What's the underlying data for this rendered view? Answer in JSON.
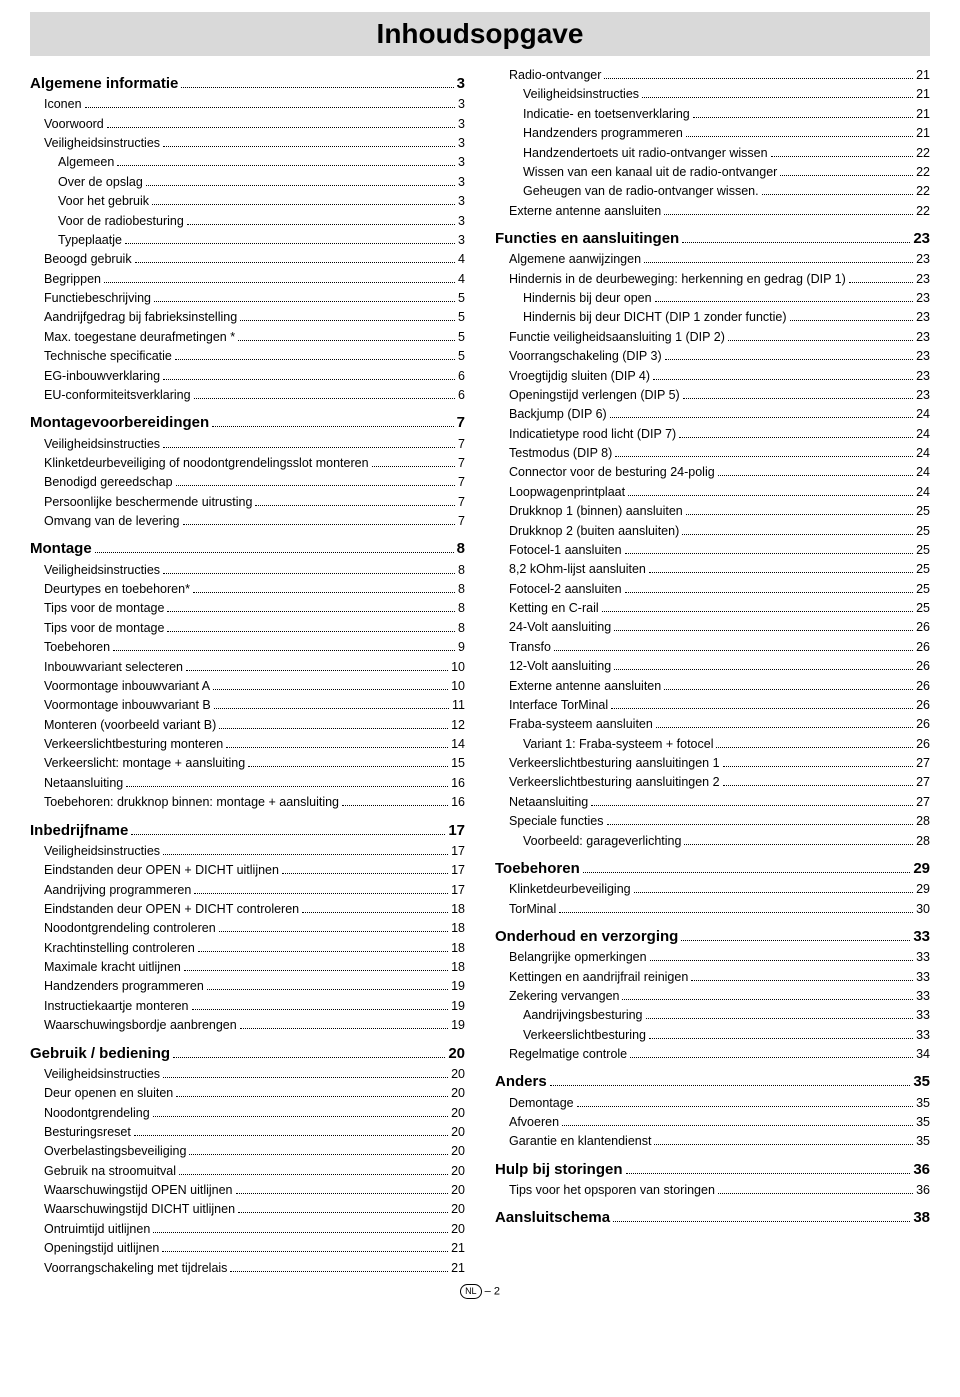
{
  "title": "Inhoudsopgave",
  "footer": {
    "lang": "NL",
    "page": "– 2"
  },
  "colors": {
    "titlebar_bg": "#d9d9d9",
    "text": "#000000",
    "bg": "#ffffff"
  },
  "left": [
    {
      "level": 0,
      "label": "Algemene informatie",
      "page": "3"
    },
    {
      "level": 1,
      "label": "Iconen",
      "page": "3"
    },
    {
      "level": 1,
      "label": "Voorwoord",
      "page": "3"
    },
    {
      "level": 1,
      "label": "Veiligheidsinstructies",
      "page": "3"
    },
    {
      "level": 2,
      "label": "Algemeen",
      "page": "3"
    },
    {
      "level": 2,
      "label": "Over de opslag",
      "page": "3"
    },
    {
      "level": 2,
      "label": "Voor het gebruik",
      "page": "3"
    },
    {
      "level": 2,
      "label": "Voor de radiobesturing",
      "page": "3"
    },
    {
      "level": 2,
      "label": "Typeplaatje",
      "page": "3"
    },
    {
      "level": 1,
      "label": "Beoogd gebruik",
      "page": "4"
    },
    {
      "level": 1,
      "label": "Begrippen",
      "page": "4"
    },
    {
      "level": 1,
      "label": "Functiebeschrijving",
      "page": "5"
    },
    {
      "level": 1,
      "label": "Aandrijfgedrag bij fabrieksinstelling",
      "page": "5"
    },
    {
      "level": 1,
      "label": "Max. toegestane deurafmetingen *",
      "page": "5"
    },
    {
      "level": 1,
      "label": "Technische specificatie",
      "page": "5"
    },
    {
      "level": 1,
      "label": "EG-inbouwverklaring",
      "page": "6"
    },
    {
      "level": 1,
      "label": "EU-conformiteitsverklaring",
      "page": "6"
    },
    {
      "level": 0,
      "label": "Montagevoorbereidingen",
      "page": "7"
    },
    {
      "level": 1,
      "label": "Veiligheidsinstructies",
      "page": "7"
    },
    {
      "level": 1,
      "label": "Klinketdeurbeveiliging of noodontgrendelingsslot monteren",
      "page": "7"
    },
    {
      "level": 1,
      "label": "Benodigd gereedschap",
      "page": "7"
    },
    {
      "level": 1,
      "label": "Persoonlijke beschermende uitrusting",
      "page": "7"
    },
    {
      "level": 1,
      "label": "Omvang van de levering",
      "page": "7"
    },
    {
      "level": 0,
      "label": "Montage",
      "page": "8"
    },
    {
      "level": 1,
      "label": "Veiligheidsinstructies",
      "page": "8"
    },
    {
      "level": 1,
      "label": "Deurtypes en toebehoren*",
      "page": "8"
    },
    {
      "level": 1,
      "label": "Tips voor de montage",
      "page": "8"
    },
    {
      "level": 1,
      "label": "Tips voor de montage",
      "page": "8"
    },
    {
      "level": 1,
      "label": "Toebehoren",
      "page": "9"
    },
    {
      "level": 1,
      "label": "Inbouwvariant selecteren",
      "page": "10"
    },
    {
      "level": 1,
      "label": "Voormontage inbouwvariant A",
      "page": "10"
    },
    {
      "level": 1,
      "label": "Voormontage inbouwvariant B",
      "page": "11"
    },
    {
      "level": 1,
      "label": "Monteren (voorbeeld variant B)",
      "page": "12"
    },
    {
      "level": 1,
      "label": "Verkeerslichtbesturing monteren",
      "page": "14"
    },
    {
      "level": 1,
      "label": "Verkeerslicht: montage + aansluiting",
      "page": "15"
    },
    {
      "level": 1,
      "label": "Netaansluiting",
      "page": "16"
    },
    {
      "level": 1,
      "label": "Toebehoren: drukknop binnen: montage + aansluiting",
      "page": "16"
    },
    {
      "level": 0,
      "label": "Inbedrijfname",
      "page": "17"
    },
    {
      "level": 1,
      "label": "Veiligheidsinstructies",
      "page": "17"
    },
    {
      "level": 1,
      "label": "Eindstanden deur OPEN + DICHT uitlijnen",
      "page": "17"
    },
    {
      "level": 1,
      "label": "Aandrijving programmeren",
      "page": "17"
    },
    {
      "level": 1,
      "label": "Eindstanden deur OPEN + DICHT controleren",
      "page": "18"
    },
    {
      "level": 1,
      "label": "Noodontgrendeling controleren",
      "page": "18"
    },
    {
      "level": 1,
      "label": "Krachtinstelling controleren",
      "page": "18"
    },
    {
      "level": 1,
      "label": "Maximale kracht uitlijnen",
      "page": "18"
    },
    {
      "level": 1,
      "label": "Handzenders programmeren",
      "page": "19"
    },
    {
      "level": 1,
      "label": "Instructiekaartje monteren",
      "page": "19"
    },
    {
      "level": 1,
      "label": "Waarschuwingsbordje aanbrengen",
      "page": "19"
    },
    {
      "level": 0,
      "label": "Gebruik / bediening",
      "page": "20"
    },
    {
      "level": 1,
      "label": "Veiligheidsinstructies",
      "page": "20"
    },
    {
      "level": 1,
      "label": "Deur openen en sluiten",
      "page": "20"
    },
    {
      "level": 1,
      "label": "Noodontgrendeling",
      "page": "20"
    },
    {
      "level": 1,
      "label": "Besturingsreset",
      "page": "20"
    },
    {
      "level": 1,
      "label": "Overbelastingsbeveiliging",
      "page": "20"
    },
    {
      "level": 1,
      "label": "Gebruik na stroomuitval",
      "page": "20"
    },
    {
      "level": 1,
      "label": "Waarschuwingstijd OPEN uitlijnen",
      "page": "20"
    },
    {
      "level": 1,
      "label": "Waarschuwingstijd DICHT uitlijnen",
      "page": "20"
    },
    {
      "level": 1,
      "label": "Ontruimtijd uitlijnen",
      "page": "20"
    },
    {
      "level": 1,
      "label": "Openingstijd uitlijnen",
      "page": "21"
    },
    {
      "level": 1,
      "label": "Voorrangschakeling met tijdrelais",
      "page": "21"
    }
  ],
  "right": [
    {
      "level": 1,
      "label": "Radio-ontvanger",
      "page": "21"
    },
    {
      "level": 2,
      "label": "Veiligheidsinstructies",
      "page": "21"
    },
    {
      "level": 2,
      "label": "Indicatie- en toetsenverklaring",
      "page": "21"
    },
    {
      "level": 2,
      "label": "Handzenders programmeren",
      "page": "21"
    },
    {
      "level": 2,
      "label": "Handzendertoets uit radio-ontvanger wissen",
      "page": "22"
    },
    {
      "level": 2,
      "label": "Wissen van een kanaal uit de radio-ontvanger",
      "page": "22"
    },
    {
      "level": 2,
      "label": "Geheugen van de radio-ontvanger wissen.",
      "page": "22"
    },
    {
      "level": 1,
      "label": "Externe antenne aansluiten",
      "page": "22"
    },
    {
      "level": 0,
      "label": "Functies en aansluitingen",
      "page": "23"
    },
    {
      "level": 1,
      "label": "Algemene aanwijzingen",
      "page": "23"
    },
    {
      "level": 1,
      "label": "Hindernis in de deurbeweging: herkenning en gedrag (DIP 1)",
      "page": "23"
    },
    {
      "level": 2,
      "label": "Hindernis bij deur open",
      "page": "23"
    },
    {
      "level": 2,
      "label": "Hindernis bij deur DICHT (DIP 1 zonder functie)",
      "page": "23"
    },
    {
      "level": 1,
      "label": "Functie veiligheidsaansluiting 1 (DIP 2)",
      "page": "23"
    },
    {
      "level": 1,
      "label": "Voorrangschakeling (DIP 3)",
      "page": "23"
    },
    {
      "level": 1,
      "label": "Vroegtijdig sluiten (DIP 4)",
      "page": "23"
    },
    {
      "level": 1,
      "label": "Openingstijd verlengen (DIP 5)",
      "page": "23"
    },
    {
      "level": 1,
      "label": "Backjump (DIP 6)",
      "page": "24"
    },
    {
      "level": 1,
      "label": "Indicatietype rood licht (DIP 7)",
      "page": "24"
    },
    {
      "level": 1,
      "label": "Testmodus (DIP 8)",
      "page": "24"
    },
    {
      "level": 1,
      "label": "Connector voor de besturing 24-polig",
      "page": "24"
    },
    {
      "level": 1,
      "label": "Loopwagenprintplaat",
      "page": "24"
    },
    {
      "level": 1,
      "label": "Drukknop 1 (binnen) aansluiten",
      "page": "25"
    },
    {
      "level": 1,
      "label": "Drukknop 2 (buiten aansluiten)",
      "page": "25"
    },
    {
      "level": 1,
      "label": "Fotocel-1 aansluiten",
      "page": "25"
    },
    {
      "level": 1,
      "label": "8,2 kOhm-lijst aansluiten",
      "page": "25"
    },
    {
      "level": 1,
      "label": "Fotocel-2 aansluiten",
      "page": "25"
    },
    {
      "level": 1,
      "label": "Ketting en C-rail",
      "page": "25"
    },
    {
      "level": 1,
      "label": "24-Volt aansluiting",
      "page": "26"
    },
    {
      "level": 1,
      "label": "Transfo",
      "page": "26"
    },
    {
      "level": 1,
      "label": "12-Volt aansluiting",
      "page": "26"
    },
    {
      "level": 1,
      "label": "Externe antenne aansluiten",
      "page": "26"
    },
    {
      "level": 1,
      "label": "Interface TorMinal",
      "page": "26"
    },
    {
      "level": 1,
      "label": "Fraba-systeem aansluiten",
      "page": "26"
    },
    {
      "level": 2,
      "label": "Variant 1: Fraba-systeem + fotocel",
      "page": "26"
    },
    {
      "level": 1,
      "label": "Verkeerslichtbesturing aansluitingen 1",
      "page": "27"
    },
    {
      "level": 1,
      "label": "Verkeerslichtbesturing aansluitingen 2",
      "page": "27"
    },
    {
      "level": 1,
      "label": "Netaansluiting",
      "page": "27"
    },
    {
      "level": 1,
      "label": "Speciale functies",
      "page": "28"
    },
    {
      "level": 2,
      "label": "Voorbeeld: garageverlichting",
      "page": "28"
    },
    {
      "level": 0,
      "label": "Toebehoren",
      "page": "29"
    },
    {
      "level": 1,
      "label": "Klinketdeurbeveiliging",
      "page": "29"
    },
    {
      "level": 1,
      "label": "TorMinal",
      "page": "30"
    },
    {
      "level": 0,
      "label": "Onderhoud en verzorging",
      "page": "33"
    },
    {
      "level": 1,
      "label": "Belangrijke opmerkingen",
      "page": "33"
    },
    {
      "level": 1,
      "label": "Kettingen en aandrijfrail reinigen",
      "page": "33"
    },
    {
      "level": 1,
      "label": "Zekering vervangen",
      "page": "33"
    },
    {
      "level": 2,
      "label": "Aandrijvingsbesturing",
      "page": "33"
    },
    {
      "level": 2,
      "label": "Verkeerslichtbesturing",
      "page": "33"
    },
    {
      "level": 1,
      "label": "Regelmatige controle",
      "page": "34"
    },
    {
      "level": 0,
      "label": "Anders",
      "page": "35"
    },
    {
      "level": 1,
      "label": "Demontage",
      "page": "35"
    },
    {
      "level": 1,
      "label": "Afvoeren",
      "page": "35"
    },
    {
      "level": 1,
      "label": "Garantie en klantendienst",
      "page": "35"
    },
    {
      "level": 0,
      "label": "Hulp bij storingen",
      "page": "36"
    },
    {
      "level": 1,
      "label": "Tips voor het opsporen van storingen",
      "page": "36"
    },
    {
      "level": 0,
      "label": "Aansluitschema",
      "page": "38"
    }
  ]
}
